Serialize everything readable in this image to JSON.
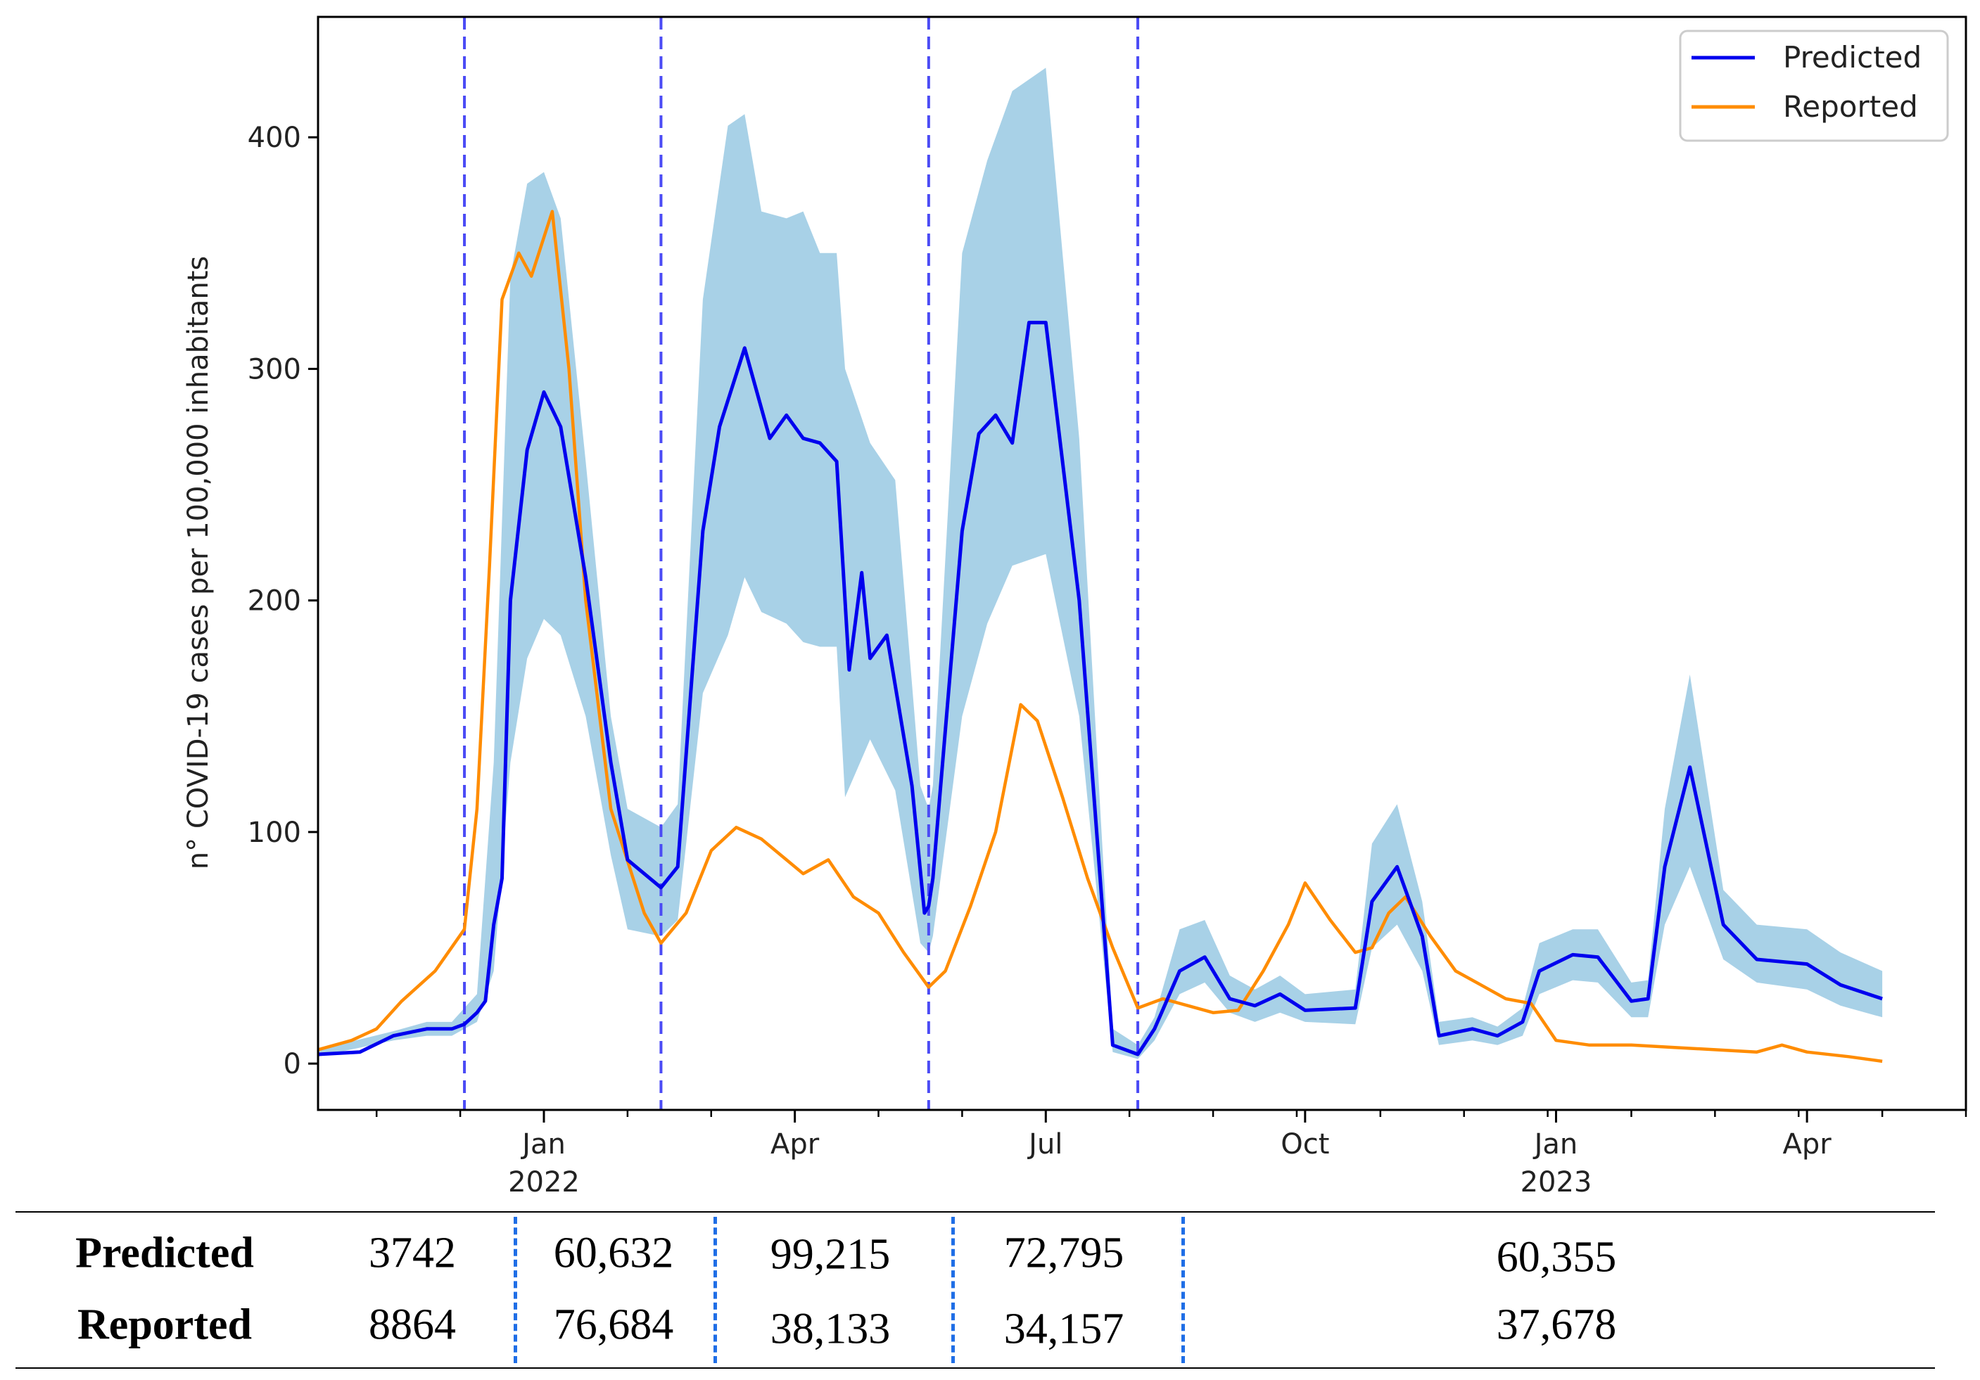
{
  "chart_data": {
    "type": "line",
    "ylabel": "n° COVID-19 cases per 100,000 inhabitants",
    "ylim": [
      -20,
      452
    ],
    "yticks": [
      0,
      100,
      200,
      300,
      400
    ],
    "xticks": [
      {
        "t": 6.0,
        "label": "Jan",
        "year": "2022"
      },
      {
        "t": 9.0,
        "label": "Apr",
        "year": ""
      },
      {
        "t": 12.0,
        "label": "Jul",
        "year": ""
      },
      {
        "t": 15.1,
        "label": "Oct",
        "year": ""
      },
      {
        "t": 18.1,
        "label": "Jan",
        "year": "2023"
      },
      {
        "t": 21.1,
        "label": "Apr",
        "year": ""
      }
    ],
    "xlim": [
      3.3,
      23.0
    ],
    "period_boundaries": [
      5.05,
      7.4,
      10.6,
      13.1
    ],
    "legend": {
      "position": "top-right",
      "entries": [
        {
          "name": "Predicted",
          "color": "#0000ee"
        },
        {
          "name": "Reported",
          "color": "#ff8c00"
        }
      ]
    },
    "colors": {
      "predicted": "#0000ee",
      "reported": "#ff8c00",
      "band": "#a8d1e7",
      "boundary": "#4b4bf5"
    },
    "series": [
      {
        "name": "Predicted",
        "points": [
          [
            3.3,
            4
          ],
          [
            3.8,
            5
          ],
          [
            4.2,
            12
          ],
          [
            4.6,
            15
          ],
          [
            4.9,
            15
          ],
          [
            5.05,
            17
          ],
          [
            5.2,
            22
          ],
          [
            5.3,
            27
          ],
          [
            5.4,
            60
          ],
          [
            5.5,
            80
          ],
          [
            5.6,
            200
          ],
          [
            5.8,
            265
          ],
          [
            6.0,
            290
          ],
          [
            6.2,
            275
          ],
          [
            6.5,
            210
          ],
          [
            6.8,
            130
          ],
          [
            7.0,
            88
          ],
          [
            7.4,
            76
          ],
          [
            7.6,
            85
          ],
          [
            7.9,
            230
          ],
          [
            8.1,
            275
          ],
          [
            8.4,
            309
          ],
          [
            8.7,
            270
          ],
          [
            8.9,
            280
          ],
          [
            9.1,
            270
          ],
          [
            9.3,
            268
          ],
          [
            9.5,
            260
          ],
          [
            9.65,
            170
          ],
          [
            9.8,
            212
          ],
          [
            9.9,
            175
          ],
          [
            10.1,
            185
          ],
          [
            10.4,
            120
          ],
          [
            10.55,
            65
          ],
          [
            10.6,
            68
          ],
          [
            10.65,
            80
          ],
          [
            11.0,
            230
          ],
          [
            11.2,
            272
          ],
          [
            11.4,
            280
          ],
          [
            11.6,
            268
          ],
          [
            11.8,
            320
          ],
          [
            12.0,
            320
          ],
          [
            12.4,
            200
          ],
          [
            12.8,
            8
          ],
          [
            13.1,
            4
          ],
          [
            13.3,
            15
          ],
          [
            13.6,
            40
          ],
          [
            13.9,
            46
          ],
          [
            14.2,
            28
          ],
          [
            14.5,
            25
          ],
          [
            14.8,
            30
          ],
          [
            15.1,
            23
          ],
          [
            15.7,
            24
          ],
          [
            15.9,
            70
          ],
          [
            16.2,
            85
          ],
          [
            16.5,
            55
          ],
          [
            16.7,
            12
          ],
          [
            17.1,
            15
          ],
          [
            17.4,
            12
          ],
          [
            17.7,
            18
          ],
          [
            17.9,
            40
          ],
          [
            18.3,
            47
          ],
          [
            18.6,
            46
          ],
          [
            19.0,
            27
          ],
          [
            19.2,
            28
          ],
          [
            19.4,
            85
          ],
          [
            19.7,
            128
          ],
          [
            20.1,
            60
          ],
          [
            20.5,
            45
          ],
          [
            21.1,
            43
          ],
          [
            21.5,
            34
          ],
          [
            22.0,
            28
          ]
        ]
      },
      {
        "name": "Reported",
        "points": [
          [
            3.3,
            6
          ],
          [
            3.7,
            10
          ],
          [
            4.0,
            15
          ],
          [
            4.3,
            27
          ],
          [
            4.7,
            40
          ],
          [
            5.05,
            58
          ],
          [
            5.2,
            110
          ],
          [
            5.35,
            215
          ],
          [
            5.5,
            330
          ],
          [
            5.7,
            350
          ],
          [
            5.85,
            340
          ],
          [
            6.1,
            368
          ],
          [
            6.3,
            300
          ],
          [
            6.5,
            200
          ],
          [
            6.8,
            110
          ],
          [
            7.2,
            65
          ],
          [
            7.4,
            52
          ],
          [
            7.7,
            65
          ],
          [
            8.0,
            92
          ],
          [
            8.3,
            102
          ],
          [
            8.6,
            97
          ],
          [
            8.9,
            88
          ],
          [
            9.1,
            82
          ],
          [
            9.4,
            88
          ],
          [
            9.7,
            72
          ],
          [
            10.0,
            65
          ],
          [
            10.3,
            48
          ],
          [
            10.6,
            33
          ],
          [
            10.8,
            40
          ],
          [
            11.1,
            68
          ],
          [
            11.4,
            100
          ],
          [
            11.7,
            155
          ],
          [
            11.9,
            148
          ],
          [
            12.2,
            115
          ],
          [
            12.5,
            80
          ],
          [
            12.8,
            50
          ],
          [
            13.1,
            24
          ],
          [
            13.4,
            28
          ],
          [
            13.7,
            25
          ],
          [
            14.0,
            22
          ],
          [
            14.3,
            23
          ],
          [
            14.6,
            40
          ],
          [
            14.9,
            60
          ],
          [
            15.1,
            78
          ],
          [
            15.4,
            62
          ],
          [
            15.7,
            48
          ],
          [
            15.9,
            50
          ],
          [
            16.1,
            65
          ],
          [
            16.3,
            72
          ],
          [
            16.6,
            55
          ],
          [
            16.9,
            40
          ],
          [
            17.2,
            34
          ],
          [
            17.5,
            28
          ],
          [
            17.8,
            26
          ],
          [
            18.1,
            10
          ],
          [
            18.5,
            8
          ],
          [
            19.0,
            8
          ],
          [
            19.5,
            7
          ],
          [
            20.0,
            6
          ],
          [
            20.5,
            5
          ],
          [
            20.8,
            8
          ],
          [
            21.1,
            5
          ],
          [
            21.6,
            3
          ],
          [
            22.0,
            1
          ]
        ]
      },
      {
        "name": "Predicted interval",
        "upper": [
          [
            3.3,
            6
          ],
          [
            4.2,
            14
          ],
          [
            4.6,
            18
          ],
          [
            4.9,
            18
          ],
          [
            5.2,
            30
          ],
          [
            5.4,
            130
          ],
          [
            5.6,
            340
          ],
          [
            5.8,
            380
          ],
          [
            6.0,
            385
          ],
          [
            6.2,
            365
          ],
          [
            6.5,
            260
          ],
          [
            6.8,
            150
          ],
          [
            7.0,
            110
          ],
          [
            7.4,
            102
          ],
          [
            7.6,
            112
          ],
          [
            7.9,
            330
          ],
          [
            8.2,
            405
          ],
          [
            8.4,
            410
          ],
          [
            8.6,
            368
          ],
          [
            8.9,
            365
          ],
          [
            9.1,
            368
          ],
          [
            9.3,
            350
          ],
          [
            9.5,
            350
          ],
          [
            9.6,
            300
          ],
          [
            9.9,
            268
          ],
          [
            10.2,
            252
          ],
          [
            10.5,
            120
          ],
          [
            10.6,
            110
          ],
          [
            10.65,
            120
          ],
          [
            11.0,
            350
          ],
          [
            11.3,
            390
          ],
          [
            11.6,
            420
          ],
          [
            12.0,
            430
          ],
          [
            12.4,
            270
          ],
          [
            12.8,
            15
          ],
          [
            13.1,
            8
          ],
          [
            13.3,
            20
          ],
          [
            13.6,
            58
          ],
          [
            13.9,
            62
          ],
          [
            14.2,
            38
          ],
          [
            14.5,
            32
          ],
          [
            14.8,
            38
          ],
          [
            15.1,
            30
          ],
          [
            15.7,
            32
          ],
          [
            15.9,
            95
          ],
          [
            16.2,
            112
          ],
          [
            16.5,
            70
          ],
          [
            16.7,
            18
          ],
          [
            17.1,
            20
          ],
          [
            17.4,
            16
          ],
          [
            17.7,
            24
          ],
          [
            17.9,
            52
          ],
          [
            18.3,
            58
          ],
          [
            18.6,
            58
          ],
          [
            19.0,
            35
          ],
          [
            19.2,
            36
          ],
          [
            19.4,
            110
          ],
          [
            19.7,
            168
          ],
          [
            20.1,
            75
          ],
          [
            20.5,
            60
          ],
          [
            21.1,
            58
          ],
          [
            21.5,
            48
          ],
          [
            22.0,
            40
          ]
        ],
        "lower": [
          [
            3.3,
            3
          ],
          [
            4.2,
            10
          ],
          [
            4.6,
            12
          ],
          [
            4.9,
            12
          ],
          [
            5.2,
            18
          ],
          [
            5.4,
            40
          ],
          [
            5.6,
            130
          ],
          [
            5.8,
            175
          ],
          [
            6.0,
            192
          ],
          [
            6.2,
            185
          ],
          [
            6.5,
            150
          ],
          [
            6.8,
            90
          ],
          [
            7.0,
            58
          ],
          [
            7.4,
            55
          ],
          [
            7.6,
            62
          ],
          [
            7.9,
            160
          ],
          [
            8.2,
            185
          ],
          [
            8.4,
            210
          ],
          [
            8.6,
            195
          ],
          [
            8.9,
            190
          ],
          [
            9.1,
            182
          ],
          [
            9.3,
            180
          ],
          [
            9.5,
            180
          ],
          [
            9.6,
            115
          ],
          [
            9.9,
            140
          ],
          [
            10.2,
            118
          ],
          [
            10.5,
            52
          ],
          [
            10.6,
            48
          ],
          [
            10.65,
            55
          ],
          [
            11.0,
            150
          ],
          [
            11.3,
            190
          ],
          [
            11.6,
            215
          ],
          [
            12.0,
            220
          ],
          [
            12.4,
            150
          ],
          [
            12.8,
            5
          ],
          [
            13.1,
            2
          ],
          [
            13.3,
            10
          ],
          [
            13.6,
            30
          ],
          [
            13.9,
            35
          ],
          [
            14.2,
            22
          ],
          [
            14.5,
            18
          ],
          [
            14.8,
            22
          ],
          [
            15.1,
            18
          ],
          [
            15.7,
            17
          ],
          [
            15.9,
            50
          ],
          [
            16.2,
            60
          ],
          [
            16.5,
            40
          ],
          [
            16.7,
            8
          ],
          [
            17.1,
            10
          ],
          [
            17.4,
            8
          ],
          [
            17.7,
            12
          ],
          [
            17.9,
            30
          ],
          [
            18.3,
            36
          ],
          [
            18.6,
            35
          ],
          [
            19.0,
            20
          ],
          [
            19.2,
            20
          ],
          [
            19.4,
            60
          ],
          [
            19.7,
            85
          ],
          [
            20.1,
            45
          ],
          [
            20.5,
            35
          ],
          [
            21.1,
            32
          ],
          [
            21.5,
            25
          ],
          [
            22.0,
            20
          ]
        ]
      }
    ]
  },
  "totals_table": {
    "row_labels": [
      "Predicted",
      "Reported"
    ],
    "predicted": [
      "3742",
      "60,632",
      "99,215",
      "72,795",
      "60,355"
    ],
    "reported": [
      "8864",
      "76,684",
      "38,133",
      "34,157",
      "37,678"
    ]
  }
}
